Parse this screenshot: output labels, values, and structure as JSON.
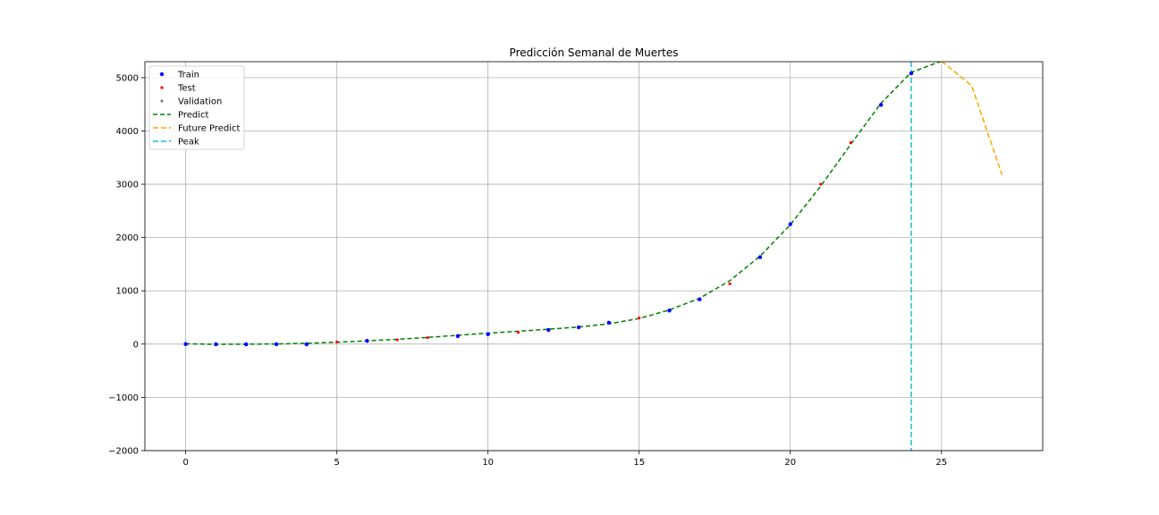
{
  "chart_data": {
    "type": "line",
    "title": "Predicción Semanal de Muertes",
    "xlabel": "",
    "ylabel": "",
    "xlim": [
      -1.35,
      28.35
    ],
    "ylim": [
      -2000,
      5300
    ],
    "x_ticks": [
      0,
      5,
      10,
      15,
      20,
      25
    ],
    "y_ticks": [
      -2000,
      -1000,
      0,
      1000,
      2000,
      3000,
      4000,
      5000
    ],
    "grid": true,
    "legend_position": "upper-left",
    "colors": {
      "train": "#0000ff",
      "test": "#ff0000",
      "validation": "#808080",
      "predict": "#008000",
      "future_predict": "#ffa500",
      "peak": "#17becf",
      "grid": "#b0b0b0"
    },
    "series": [
      {
        "name": "Train",
        "kind": "scatter",
        "color": "#0000ff",
        "points": [
          [
            0,
            0
          ],
          [
            1,
            -5
          ],
          [
            2,
            -5
          ],
          [
            3,
            -3
          ],
          [
            4,
            -5
          ],
          [
            6,
            60
          ],
          [
            9,
            150
          ],
          [
            10,
            185
          ],
          [
            12,
            265
          ],
          [
            13,
            315
          ],
          [
            14,
            400
          ],
          [
            16,
            630
          ],
          [
            17,
            840
          ],
          [
            19,
            1630
          ],
          [
            20,
            2250
          ],
          [
            23,
            4490
          ],
          [
            24,
            5080
          ]
        ]
      },
      {
        "name": "Test",
        "kind": "scatter",
        "color": "#ff0000",
        "points": [
          [
            5,
            40
          ],
          [
            7,
            80
          ],
          [
            8,
            120
          ],
          [
            11,
            220
          ],
          [
            15,
            490
          ],
          [
            18,
            1130
          ],
          [
            21,
            3000
          ],
          [
            22,
            3780
          ]
        ]
      },
      {
        "name": "Validation",
        "kind": "scatter",
        "color": "#808080",
        "points": []
      },
      {
        "name": "Predict",
        "kind": "line",
        "dash": "5,3",
        "color": "#008000",
        "points": [
          [
            0,
            5
          ],
          [
            1,
            -5
          ],
          [
            2,
            -2
          ],
          [
            3,
            2
          ],
          [
            4,
            15
          ],
          [
            5,
            35
          ],
          [
            6,
            60
          ],
          [
            7,
            90
          ],
          [
            8,
            125
          ],
          [
            9,
            165
          ],
          [
            10,
            205
          ],
          [
            11,
            240
          ],
          [
            12,
            280
          ],
          [
            13,
            320
          ],
          [
            14,
            380
          ],
          [
            15,
            480
          ],
          [
            16,
            640
          ],
          [
            17,
            860
          ],
          [
            18,
            1190
          ],
          [
            19,
            1650
          ],
          [
            20,
            2240
          ],
          [
            21,
            2960
          ],
          [
            22,
            3750
          ],
          [
            23,
            4520
          ],
          [
            24,
            5100
          ],
          [
            25,
            5310
          ]
        ]
      },
      {
        "name": "Future Predict",
        "kind": "line",
        "dash": "6,3",
        "color": "#ffa500",
        "points": [
          [
            25,
            5310
          ],
          [
            26,
            4850
          ],
          [
            27,
            3180
          ]
        ]
      },
      {
        "name": "Peak",
        "kind": "vline",
        "dash": "6,3",
        "color": "#17becf",
        "x": 24
      }
    ]
  }
}
